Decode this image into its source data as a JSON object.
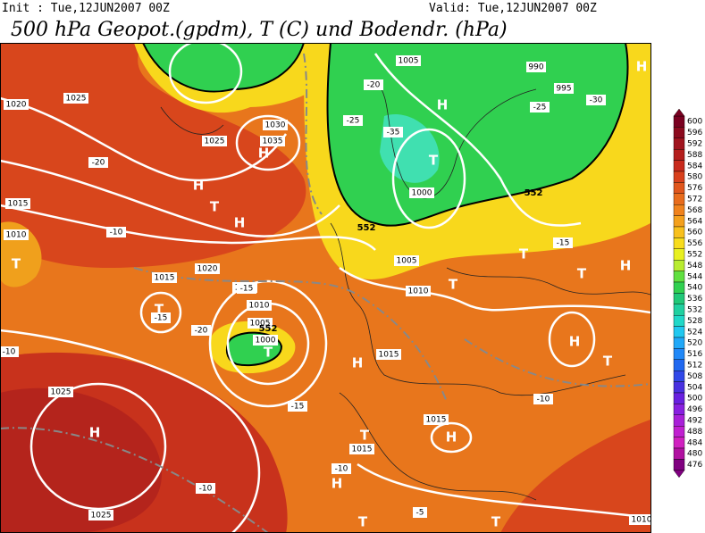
{
  "header": {
    "init": "Init : Tue,12JUN2007 00Z",
    "valid": "Valid: Tue,12JUN2007 00Z",
    "title": "500 hPa Geopot.(gpdm), T (C) und Bodendr. (hPa)"
  },
  "colorbar": {
    "labels": [
      "600",
      "596",
      "592",
      "588",
      "584",
      "580",
      "576",
      "572",
      "568",
      "564",
      "560",
      "556",
      "552",
      "548",
      "544",
      "540",
      "536",
      "532",
      "528",
      "524",
      "520",
      "516",
      "512",
      "508",
      "504",
      "500",
      "496",
      "492",
      "488",
      "484",
      "480",
      "476"
    ],
    "colors": [
      "#7a0020",
      "#8c0a1e",
      "#a0141e",
      "#b41e1c",
      "#c82a1c",
      "#d8401c",
      "#e0561c",
      "#e86c1c",
      "#f0821c",
      "#f4a01c",
      "#f8c01c",
      "#f8dc1c",
      "#e8f020",
      "#b8ec30",
      "#60e040",
      "#30d050",
      "#20c878",
      "#20d0a0",
      "#20d8c8",
      "#20c8f0",
      "#20a8f8",
      "#2088f8",
      "#2068f0",
      "#3048e8",
      "#4830e0",
      "#6820e0",
      "#8820e0",
      "#a820d8",
      "#c020d0",
      "#d020c0",
      "#b010a0",
      "#800080"
    ]
  },
  "map": {
    "labels": [
      "H",
      "H",
      "H",
      "H",
      "H",
      "H",
      "H",
      "H",
      "H",
      "H",
      "H",
      "T",
      "T",
      "T",
      "T",
      "T",
      "T",
      "T",
      "T",
      "T",
      "T",
      "T",
      "T",
      "1010",
      "1015",
      "1020",
      "1025",
      "1030",
      "1035",
      "1025",
      "1020",
      "1015",
      "1010",
      "1005",
      "1000",
      "1005",
      "1000",
      "995",
      "990",
      "1005",
      "1010",
      "1015",
      "1015",
      "1025",
      "1025",
      "1010",
      "1015",
      "1010",
      "-5",
      "-10",
      "-10",
      "-15",
      "-15",
      "-20",
      "-20",
      "-25",
      "-25",
      "-30",
      "-35",
      "-15",
      "-10",
      "-10",
      "-20",
      "-15",
      "-10",
      "552",
      "552",
      "552"
    ]
  }
}
